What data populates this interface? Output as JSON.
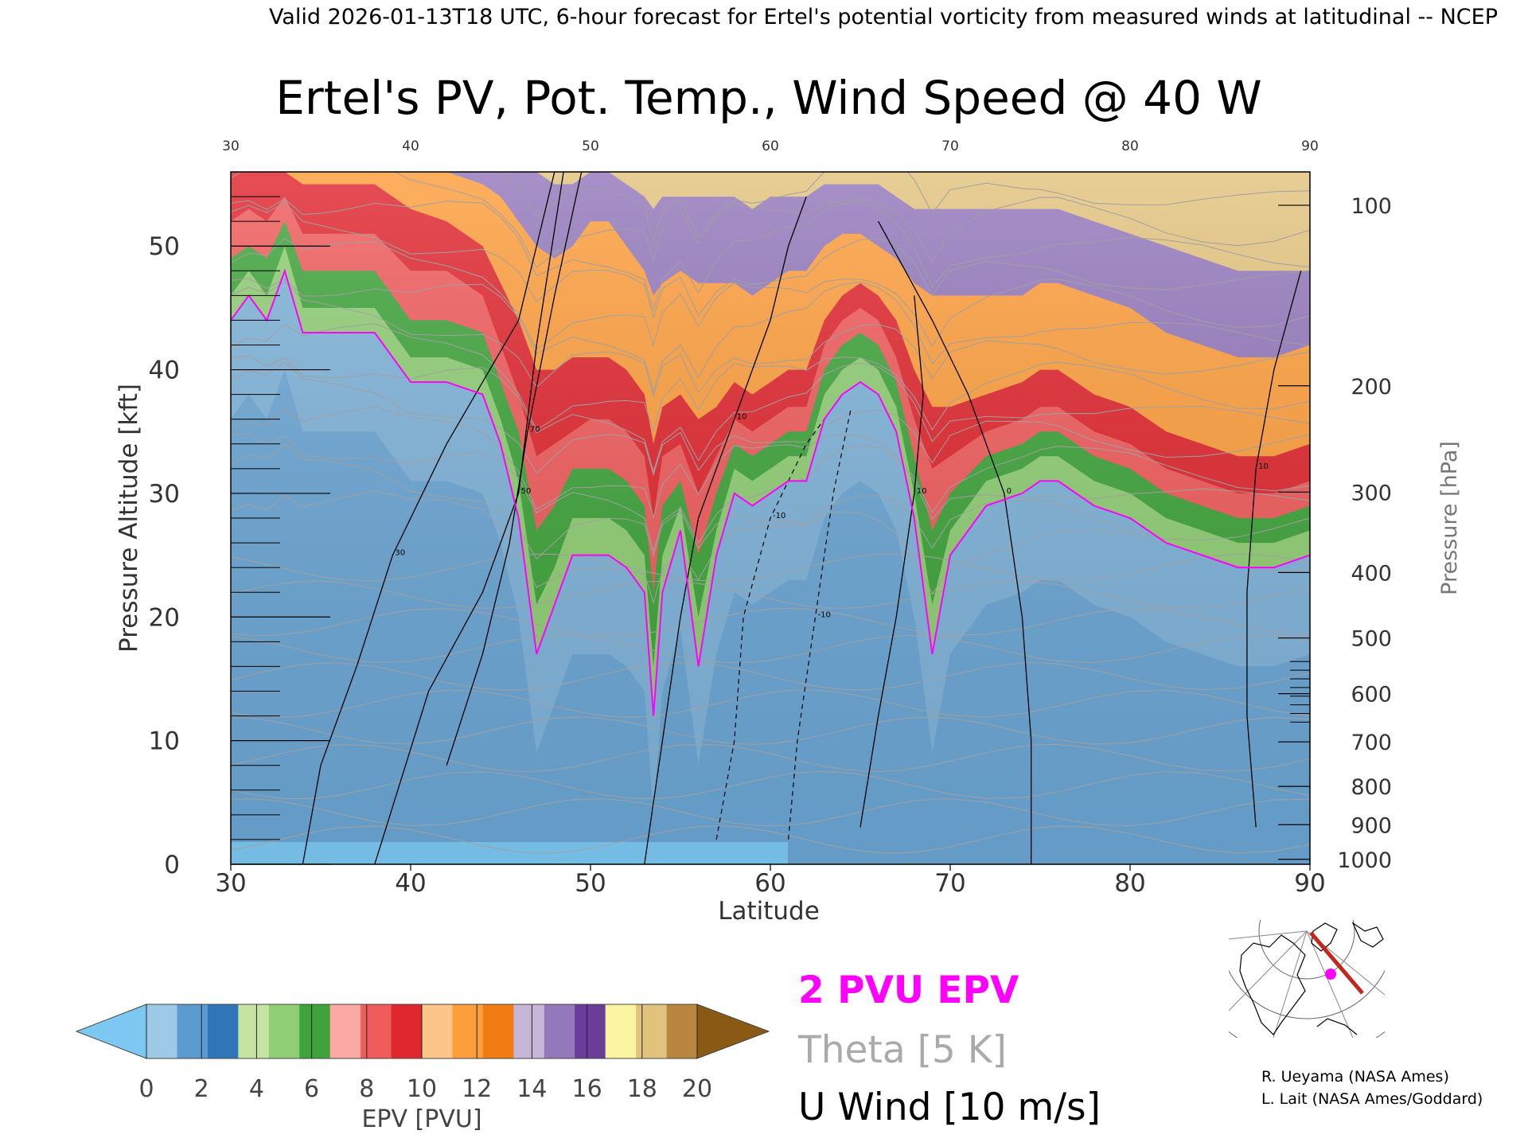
{
  "header": {
    "valid_line": "Valid 2026-01-13T18 UTC, 6-hour forecast for Ertel's potential vorticity from measured winds at latitudinal -- NCEP"
  },
  "chart_data": {
    "type": "heatmap",
    "title": "Ertel's PV, Pot. Temp., Wind Speed @ 40 W",
    "xlabel": "Latitude",
    "ylabel_left": "Pressure Altitude [kft]",
    "ylabel_right": "Pressure [hPa]",
    "xlim": [
      30,
      90
    ],
    "ylim_kft": [
      0,
      56
    ],
    "x_ticks": [
      "30",
      "40",
      "50",
      "60",
      "70",
      "80",
      "90"
    ],
    "y_ticks_left": [
      "0",
      "10",
      "20",
      "30",
      "40",
      "50"
    ],
    "y_ticks_right": [
      {
        "label": "1000",
        "kft": 0.4
      },
      {
        "label": "900",
        "kft": 3.2
      },
      {
        "label": "800",
        "kft": 6.3
      },
      {
        "label": "700",
        "kft": 9.9
      },
      {
        "label": "600",
        "kft": 13.8
      },
      {
        "label": "500",
        "kft": 18.3
      },
      {
        "label": "400",
        "kft": 23.6
      },
      {
        "label": "300",
        "kft": 30.1
      },
      {
        "label": "200",
        "kft": 38.7
      },
      {
        "label": "100",
        "kft": 53.3
      }
    ],
    "tropopause_2pvu": {
      "lat": [
        30,
        31,
        32,
        33,
        34,
        35,
        36,
        38,
        40,
        42,
        44,
        45,
        46,
        47,
        48,
        49,
        50,
        51,
        52,
        53,
        53.5,
        54,
        55,
        56,
        57,
        58,
        59,
        60,
        61,
        62,
        63,
        64,
        65,
        66,
        67,
        68,
        69,
        70,
        72,
        74,
        75,
        76,
        78,
        80,
        82,
        84,
        86,
        88,
        90
      ],
      "kft": [
        44,
        46,
        44,
        48,
        43,
        43,
        43,
        43,
        39,
        39,
        38,
        34,
        28,
        17,
        21,
        25,
        25,
        25,
        24,
        22,
        12,
        22,
        27,
        16,
        25,
        30,
        29,
        30,
        31,
        31,
        36,
        38,
        39,
        38,
        35,
        28,
        17,
        25,
        29,
        30,
        31,
        31,
        29,
        28,
        26,
        25,
        24,
        24,
        25
      ]
    },
    "epv_layers": [
      {
        "pvu": 3.5,
        "kft": [
          46,
          48,
          46,
          50,
          45,
          45,
          45,
          45,
          41,
          41,
          40,
          36,
          31,
          21,
          24,
          28,
          28,
          28,
          27,
          25,
          16,
          25,
          29,
          20,
          27,
          32,
          31,
          32,
          33,
          33,
          38,
          40,
          41,
          40,
          37,
          30,
          21,
          27,
          31,
          32,
          33,
          33,
          31,
          30,
          28,
          27,
          26,
          26,
          27
        ]
      },
      {
        "pvu": 5,
        "kft": [
          49,
          50,
          49,
          52,
          48,
          48,
          48,
          48,
          44,
          44,
          43,
          39,
          35,
          27,
          29,
          32,
          32,
          32,
          31,
          29,
          22,
          29,
          31,
          25,
          30,
          34,
          33,
          34,
          35,
          35,
          40,
          42,
          43,
          42,
          39,
          33,
          27,
          30,
          33,
          34,
          35,
          35,
          33,
          32,
          30,
          29,
          28,
          28,
          29
        ]
      },
      {
        "pvu": 7,
        "kft": [
          52,
          53,
          52,
          54,
          51,
          51,
          51,
          51,
          48,
          48,
          46,
          42,
          38,
          33,
          34,
          35,
          36,
          36,
          35,
          33,
          28,
          33,
          34,
          30,
          33,
          36,
          35,
          36,
          37,
          37,
          42,
          44,
          45,
          44,
          41,
          36,
          32,
          33,
          35,
          36,
          37,
          37,
          35,
          34,
          32,
          31,
          30,
          30,
          31
        ]
      },
      {
        "pvu": 9,
        "kft": [
          56,
          56,
          56,
          56,
          55,
          55,
          55,
          55,
          53,
          52,
          50,
          47,
          44,
          40,
          40,
          41,
          41,
          41,
          40,
          38,
          34,
          37,
          38,
          36,
          37,
          39,
          38,
          39,
          40,
          40,
          44,
          46,
          47,
          46,
          44,
          40,
          37,
          37,
          38,
          39,
          40,
          40,
          38,
          37,
          35,
          34,
          33,
          33,
          34
        ]
      },
      {
        "pvu": 11,
        "kft": [
          56,
          56,
          56,
          56,
          56,
          56,
          56,
          56,
          56,
          56,
          55,
          54,
          52,
          50,
          49,
          50,
          52,
          52,
          50,
          48,
          46,
          47,
          48,
          47,
          47,
          47,
          46,
          47,
          48,
          48,
          50,
          51,
          51,
          50,
          49,
          47,
          46,
          46,
          46,
          46,
          47,
          47,
          46,
          45,
          43,
          42,
          41,
          41,
          42
        ]
      },
      {
        "pvu": 13,
        "kft": [
          56,
          56,
          56,
          56,
          56,
          56,
          56,
          56,
          56,
          56,
          56,
          56,
          56,
          56,
          55,
          55,
          56,
          56,
          55,
          54,
          53,
          54,
          54,
          54,
          54,
          54,
          53,
          54,
          54,
          54,
          55,
          55,
          55,
          55,
          54,
          53,
          53,
          53,
          53,
          53,
          53,
          53,
          52,
          51,
          50,
          49,
          48,
          48,
          48
        ]
      },
      {
        "pvu": 16,
        "kft": [
          56,
          56,
          56,
          56,
          56,
          56,
          56,
          56,
          56,
          56,
          56,
          56,
          56,
          56,
          56,
          56,
          56,
          56,
          56,
          56,
          56,
          56,
          56,
          56,
          56,
          56,
          56,
          56,
          56,
          56,
          56,
          56,
          56,
          56,
          56,
          56,
          56,
          56,
          56,
          56,
          56,
          56,
          55,
          54,
          53,
          53,
          52,
          52,
          52
        ]
      }
    ],
    "u_wind_contours": [
      {
        "label": "30",
        "lat": [
          34,
          35,
          37,
          39,
          42,
          46,
          48
        ],
        "kft": [
          0,
          8,
          16,
          25,
          34,
          44,
          56
        ]
      },
      {
        "label": "50",
        "lat": [
          38,
          41,
          44,
          46,
          47,
          48.5
        ],
        "kft": [
          0,
          14,
          22,
          30,
          42,
          56
        ]
      },
      {
        "label": "70",
        "lat": [
          42,
          44,
          45.5,
          46.5,
          48,
          49.5
        ],
        "kft": [
          8,
          17,
          26,
          35,
          46,
          56
        ]
      },
      {
        "label": "10",
        "lat": [
          53,
          54,
          55,
          56,
          58,
          60,
          61,
          62
        ],
        "kft": [
          0,
          10,
          20,
          28,
          36,
          44,
          50,
          54
        ]
      },
      {
        "label": "0",
        "lat": [
          74.5,
          74.5,
          74,
          73,
          71,
          69,
          66
        ],
        "kft": [
          0,
          10,
          20,
          30,
          38,
          44,
          52
        ]
      },
      {
        "label": "10",
        "lat": [
          65,
          66,
          67,
          68,
          68.5,
          68
        ],
        "kft": [
          3,
          12,
          20,
          30,
          38,
          46
        ]
      },
      {
        "label": "10",
        "lat": [
          87,
          86.5,
          86.5,
          87,
          88,
          89.5
        ],
        "kft": [
          3,
          12,
          22,
          32,
          40,
          48
        ]
      }
    ],
    "u_wind_dashed": [
      {
        "label": "-10",
        "lat": [
          57,
          58,
          58.5,
          60,
          62,
          63.5
        ],
        "kft": [
          2,
          10,
          20,
          28,
          34,
          37
        ]
      },
      {
        "label": "-10",
        "lat": [
          61,
          61.5,
          62.5,
          63.5,
          64.5
        ],
        "kft": [
          2,
          10,
          20,
          30,
          37
        ]
      }
    ],
    "legend": [
      {
        "label": "2 PVU EPV",
        "color": "#ff00ff"
      },
      {
        "label": "Theta [5 K]",
        "color": "#aaaaaa"
      },
      {
        "label": "U Wind [10 m/s]",
        "color": "#000000"
      }
    ],
    "colorbar": {
      "label": "EPV [PVU]",
      "ticks": [
        "0",
        "2",
        "4",
        "6",
        "8",
        "10",
        "12",
        "14",
        "16",
        "18",
        "20"
      ],
      "colors": [
        "#9ecae8",
        "#5b9bd0",
        "#2f75b8",
        "#c6e3a2",
        "#8fce74",
        "#3ea43a",
        "#fba9a2",
        "#f05b5b",
        "#e0262e",
        "#fdc589",
        "#fd9e3c",
        "#f07c13",
        "#c8b6d8",
        "#9378bb",
        "#6a3d9a",
        "#fbf4a0",
        "#e2c37d",
        "#b8863f"
      ],
      "under_color": "#7cc8f2",
      "over_color": "#8a5a14"
    }
  },
  "inset_map": {
    "credits": [
      "R. Ueyama (NASA Ames)",
      "L. Lait (NASA Ames/Goddard)"
    ],
    "track_color": "#c0281e",
    "marker_color": "#ff00ff"
  }
}
